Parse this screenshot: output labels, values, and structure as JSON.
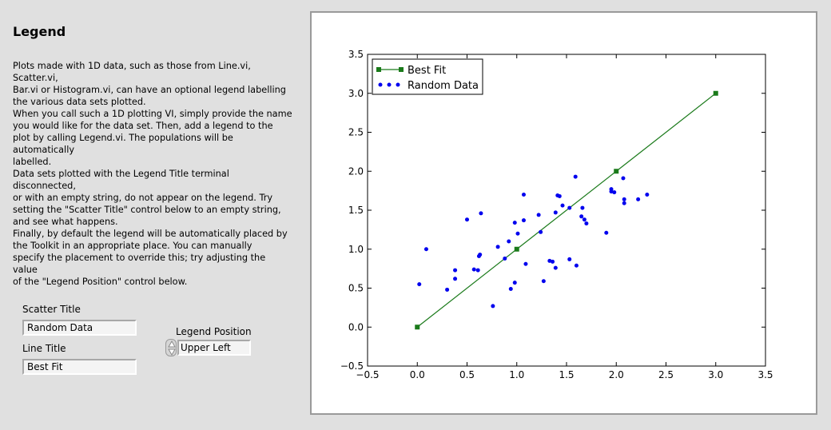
{
  "panel": {
    "title": "Legend",
    "paragraphs": [
      [
        "Plots made with 1D data, such as those from Line.vi, Scatter.vi,",
        "Bar.vi or Histogram.vi, can have an optional legend labelling",
        "the various data sets plotted."
      ],
      [
        "When you call such a 1D plotting VI, simply provide the name",
        "you would like for the data set.  Then, add a legend to the",
        "plot by calling Legend.vi.  The populations will be automatically",
        "labelled."
      ],
      [
        "Data sets plotted with the Legend Title terminal disconnected,",
        "or with an empty string, do not appear on the legend.  Try",
        "setting the \"Scatter Title\" control below to an empty string,",
        "and see what happens."
      ],
      [
        "Finally, by default the legend will be automatically placed by",
        "the Toolkit in an appropriate  place.  You can manually",
        "specify the placement to override this; try adjusting the value",
        "of the \"Legend Position\" control below."
      ]
    ]
  },
  "controls": {
    "scatter_title_label": "Scatter Title",
    "scatter_title_value": "Random Data",
    "line_title_label": "Line Title",
    "line_title_value": "Best Fit",
    "legend_position_label": "Legend Position",
    "legend_position_value": "Upper Left"
  },
  "chart_data": {
    "type": "scatter",
    "title": "",
    "xlabel": "",
    "ylabel": "",
    "xlim": [
      -0.5,
      3.5
    ],
    "ylim": [
      -0.5,
      3.5
    ],
    "xticks": [
      "-0.5",
      "0.0",
      "0.5",
      "1.0",
      "1.5",
      "2.0",
      "2.5",
      "3.0",
      "3.5"
    ],
    "yticks": [
      "-0.5",
      "0.0",
      "0.5",
      "1.0",
      "1.5",
      "2.0",
      "2.5",
      "3.0",
      "3.5"
    ],
    "legend_position": "upper-left",
    "series": [
      {
        "name": "Best Fit",
        "kind": "line",
        "color": "#1a7a1a",
        "marker": "square",
        "points": [
          [
            0.0,
            0.0
          ],
          [
            1.0,
            1.0
          ],
          [
            2.0,
            2.0
          ],
          [
            3.0,
            3.0
          ]
        ]
      },
      {
        "name": "Random Data",
        "kind": "scatter",
        "color": "#0000ee",
        "marker": "circle",
        "points": [
          [
            0.02,
            0.55
          ],
          [
            0.09,
            1.0
          ],
          [
            0.3,
            0.48
          ],
          [
            0.38,
            0.73
          ],
          [
            0.38,
            0.62
          ],
          [
            0.5,
            1.38
          ],
          [
            0.57,
            0.74
          ],
          [
            0.61,
            0.73
          ],
          [
            0.62,
            0.91
          ],
          [
            0.63,
            0.93
          ],
          [
            0.64,
            1.46
          ],
          [
            0.76,
            0.27
          ],
          [
            0.81,
            1.03
          ],
          [
            0.88,
            0.88
          ],
          [
            0.92,
            1.1
          ],
          [
            0.94,
            0.49
          ],
          [
            0.98,
            0.57
          ],
          [
            0.98,
            1.34
          ],
          [
            1.01,
            1.2
          ],
          [
            1.07,
            1.7
          ],
          [
            1.07,
            1.37
          ],
          [
            1.09,
            0.81
          ],
          [
            1.22,
            1.44
          ],
          [
            1.24,
            1.22
          ],
          [
            1.27,
            0.59
          ],
          [
            1.33,
            0.85
          ],
          [
            1.36,
            0.84
          ],
          [
            1.39,
            1.47
          ],
          [
            1.39,
            0.76
          ],
          [
            1.41,
            1.69
          ],
          [
            1.43,
            1.68
          ],
          [
            1.46,
            1.56
          ],
          [
            1.53,
            1.53
          ],
          [
            1.53,
            0.87
          ],
          [
            1.59,
            1.93
          ],
          [
            1.6,
            0.79
          ],
          [
            1.65,
            1.42
          ],
          [
            1.66,
            1.53
          ],
          [
            1.68,
            1.38
          ],
          [
            1.7,
            1.33
          ],
          [
            1.9,
            1.21
          ],
          [
            1.95,
            1.77
          ],
          [
            1.95,
            1.74
          ],
          [
            1.98,
            1.73
          ],
          [
            2.07,
            1.91
          ],
          [
            2.08,
            1.64
          ],
          [
            2.08,
            1.59
          ],
          [
            2.22,
            1.64
          ],
          [
            2.31,
            1.7
          ]
        ]
      }
    ]
  }
}
